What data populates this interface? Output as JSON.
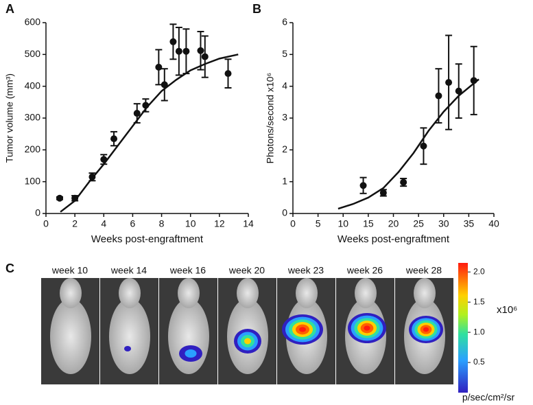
{
  "chart_data": [
    {
      "type": "scatter",
      "panel": "A",
      "xlabel": "Weeks post-engraftment",
      "ylabel": "Tumor volume (mm³)",
      "xlim": [
        0,
        14
      ],
      "xticks": [
        0,
        2,
        4,
        6,
        8,
        10,
        12,
        14
      ],
      "ylim": [
        0,
        600
      ],
      "yticks": [
        0,
        100,
        200,
        300,
        400,
        500,
        600
      ],
      "series": [
        {
          "type": "errorbar",
          "color": "#111111",
          "x": [
            0.95,
            2.0,
            3.2,
            4.0,
            4.7,
            6.3,
            6.9,
            7.8,
            8.2,
            8.8,
            9.2,
            9.7,
            10.7,
            11.0,
            12.6
          ],
          "values": [
            48,
            48,
            115,
            170,
            235,
            315,
            340,
            460,
            405,
            540,
            510,
            510,
            512,
            493,
            440
          ],
          "errors": [
            4,
            8,
            12,
            15,
            22,
            30,
            20,
            55,
            50,
            55,
            75,
            70,
            60,
            65,
            45
          ]
        },
        {
          "type": "line",
          "color": "#111111",
          "x": [
            1,
            2,
            3,
            4,
            5,
            6,
            7,
            8,
            9,
            10,
            11,
            12,
            13.3
          ],
          "values": [
            5,
            40,
            100,
            155,
            215,
            275,
            335,
            385,
            420,
            450,
            470,
            487,
            500
          ]
        }
      ]
    },
    {
      "type": "scatter",
      "panel": "B",
      "xlabel": "Weeks post-engraftment",
      "ylabel": "Photons/second x10⁶",
      "xlim": [
        0,
        40
      ],
      "xticks": [
        0,
        5,
        10,
        15,
        20,
        25,
        30,
        35,
        40
      ],
      "ylim": [
        0,
        6
      ],
      "yticks": [
        0,
        1,
        2,
        3,
        4,
        5,
        6
      ],
      "series": [
        {
          "type": "errorbar",
          "color": "#111111",
          "x": [
            14,
            18,
            22,
            26,
            29,
            31,
            33,
            36
          ],
          "values": [
            0.88,
            0.65,
            0.98,
            2.12,
            3.7,
            4.12,
            3.85,
            4.18
          ],
          "errors": [
            0.25,
            0.1,
            0.12,
            0.57,
            0.85,
            1.48,
            0.85,
            1.07
          ]
        },
        {
          "type": "line",
          "color": "#111111",
          "x": [
            9,
            12,
            15,
            18,
            21,
            24,
            27,
            30,
            33,
            37
          ],
          "values": [
            0.15,
            0.3,
            0.5,
            0.8,
            1.3,
            1.9,
            2.6,
            3.2,
            3.7,
            4.22
          ]
        }
      ]
    },
    {
      "type": "image-panel",
      "panel": "C",
      "labels": [
        "week 10",
        "week 14",
        "week 16",
        "week 20",
        "week 23",
        "week 26",
        "week 28"
      ],
      "colorbar": {
        "lim": [
          0,
          2.15
        ],
        "ticks": [
          {
            "value": 2,
            "label": "2.0"
          },
          1.5,
          {
            "value": 1,
            "label": "1.0"
          },
          0.5
        ],
        "multiplier": "x10⁶",
        "label": "p/sec/cm²/sr"
      }
    }
  ]
}
